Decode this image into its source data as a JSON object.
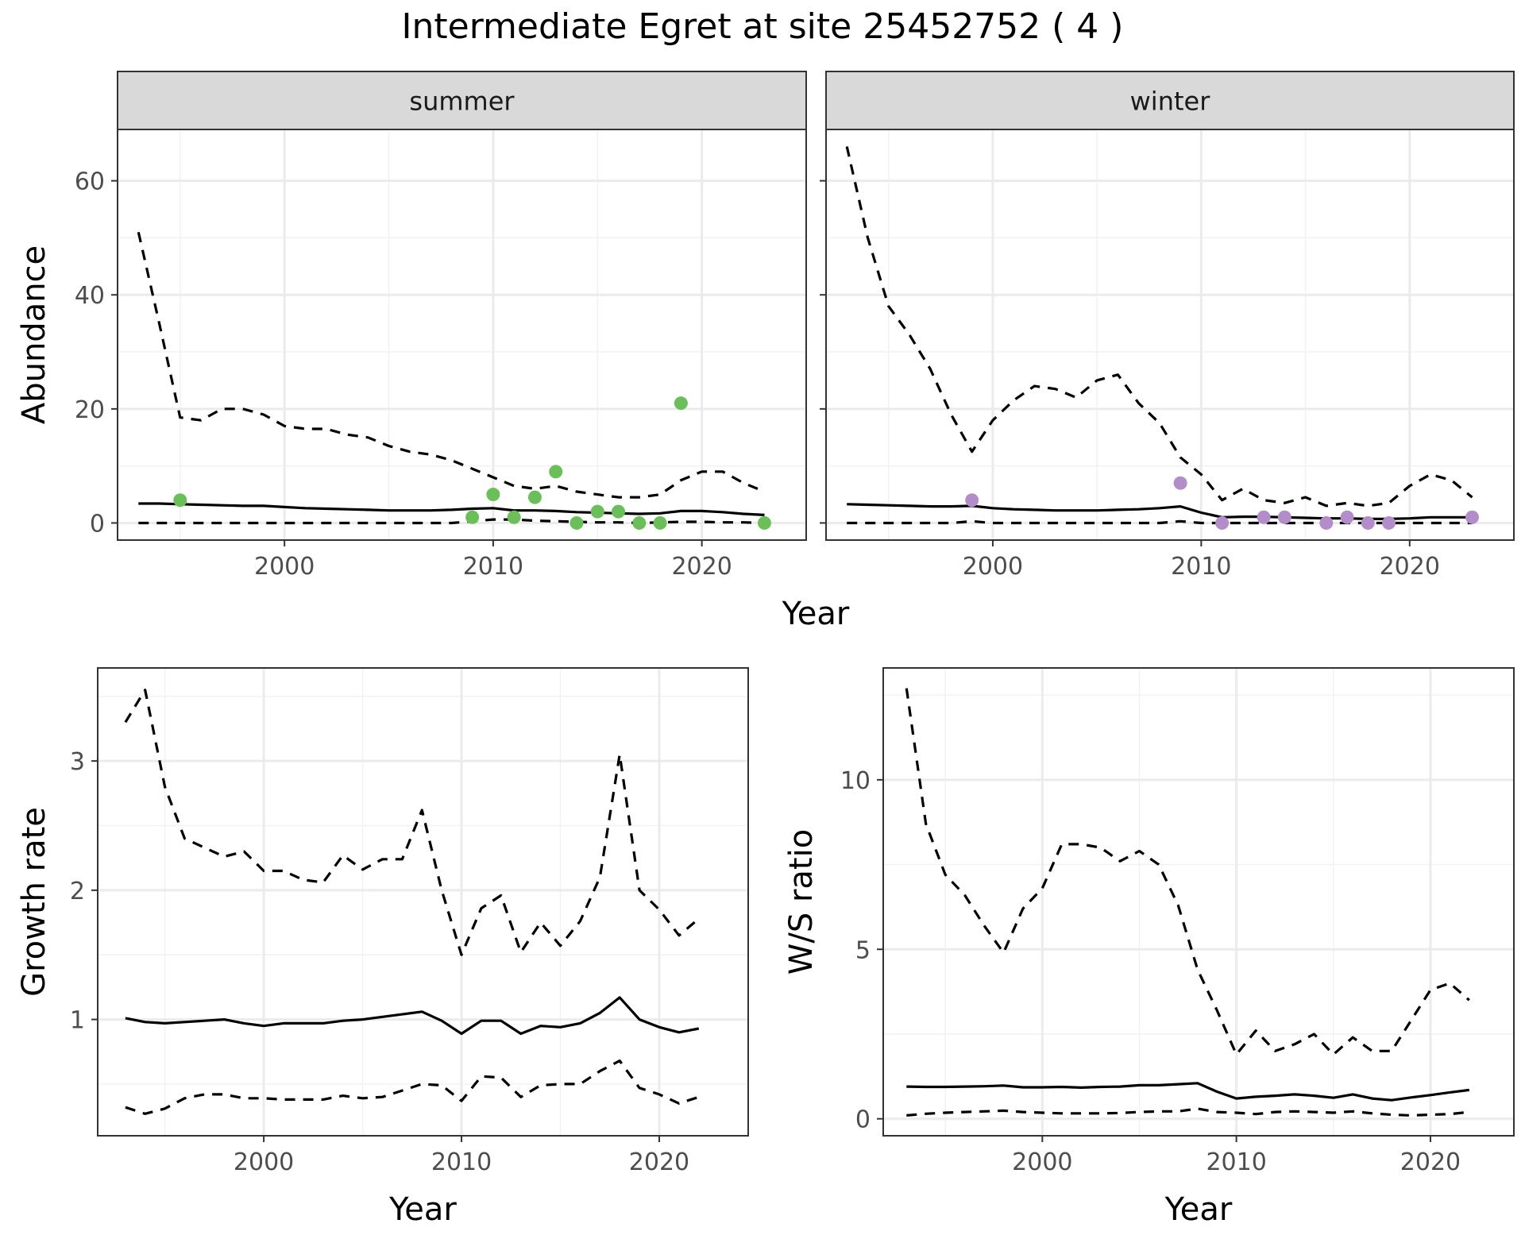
{
  "title": "Intermediate Egret at site 25452752 ( 4 )",
  "colors": {
    "summer": "#6BBF59",
    "winter": "#B28DC9",
    "line": "#000000",
    "strip": "#D9D9D9"
  },
  "chart_data": [
    {
      "type": "line",
      "facet": "summer",
      "xlabel": "Year",
      "ylabel": "Abundance",
      "xlim": [
        1992,
        2025
      ],
      "ylim": [
        -3,
        69
      ],
      "xticks": [
        2000,
        2010,
        2020
      ],
      "yticks": [
        0,
        20,
        40,
        60
      ],
      "grid": true,
      "lines": [
        {
          "style": "dashed",
          "x": [
            1993,
            1994,
            1995,
            1996,
            1997,
            1998,
            1999,
            2000,
            2001,
            2002,
            2003,
            2004,
            2005,
            2006,
            2007,
            2008,
            2009,
            2010,
            2011,
            2012,
            2013,
            2014,
            2015,
            2016,
            2017,
            2018,
            2019,
            2020,
            2021,
            2022,
            2023
          ],
          "y": [
            51,
            35,
            18.5,
            18,
            20,
            20,
            19,
            17,
            16.5,
            16.5,
            15.5,
            15,
            13.5,
            12.5,
            12,
            11,
            9.5,
            8,
            6.5,
            6,
            6.5,
            5.5,
            5,
            4.5,
            4.5,
            5,
            7.5,
            9,
            9,
            7,
            5.5
          ]
        },
        {
          "style": "solid",
          "x": [
            1993,
            1994,
            1995,
            1996,
            1997,
            1998,
            1999,
            2000,
            2001,
            2002,
            2003,
            2004,
            2005,
            2006,
            2007,
            2008,
            2009,
            2010,
            2011,
            2012,
            2013,
            2014,
            2015,
            2016,
            2017,
            2018,
            2019,
            2020,
            2021,
            2022,
            2023
          ],
          "y": [
            3.4,
            3.4,
            3.3,
            3.2,
            3.1,
            3.0,
            3.0,
            2.8,
            2.6,
            2.5,
            2.4,
            2.3,
            2.2,
            2.2,
            2.2,
            2.3,
            2.5,
            2.6,
            2.2,
            2.2,
            2.1,
            1.9,
            1.8,
            1.7,
            1.6,
            1.7,
            2.1,
            2.1,
            1.9,
            1.6,
            1.4
          ]
        },
        {
          "style": "dashed",
          "x": [
            1993,
            1995,
            2000,
            2005,
            2008,
            2009,
            2010,
            2011,
            2012,
            2013,
            2014,
            2015,
            2016,
            2017,
            2018,
            2019,
            2020,
            2021,
            2022,
            2023
          ],
          "y": [
            0,
            0,
            0,
            0,
            0,
            0.3,
            0.6,
            0.6,
            0.4,
            0.3,
            0.2,
            0.1,
            0.1,
            0,
            0.1,
            0.2,
            0.2,
            0.1,
            0.1,
            0
          ]
        }
      ],
      "points": {
        "x": [
          1995,
          2009,
          2010,
          2011,
          2012,
          2013,
          2014,
          2015,
          2016,
          2017,
          2018,
          2019,
          2023
        ],
        "y": [
          4,
          1,
          5,
          1,
          4.5,
          9,
          0,
          2,
          2,
          0,
          0,
          21,
          0
        ]
      }
    },
    {
      "type": "line",
      "facet": "winter",
      "xlabel": "Year",
      "ylabel": "",
      "xlim": [
        1992,
        2025
      ],
      "ylim": [
        -3,
        69
      ],
      "xticks": [
        2000,
        2010,
        2020
      ],
      "yticks": [
        0,
        20,
        40,
        60
      ],
      "grid": true,
      "lines": [
        {
          "style": "dashed",
          "x": [
            1993,
            1994,
            1995,
            1996,
            1997,
            1998,
            1999,
            2000,
            2001,
            2002,
            2003,
            2004,
            2005,
            2006,
            2007,
            2008,
            2009,
            2010,
            2011,
            2012,
            2013,
            2014,
            2015,
            2016,
            2017,
            2018,
            2019,
            2020,
            2021,
            2022,
            2023
          ],
          "y": [
            66,
            50,
            38,
            33,
            27,
            19,
            12.5,
            18,
            21.5,
            24,
            23.5,
            22,
            25,
            26,
            21,
            17.5,
            11.5,
            8.5,
            4,
            6,
            4,
            3.5,
            4.5,
            3,
            3.5,
            3,
            3.5,
            6.5,
            8.5,
            7.5,
            4.5
          ]
        },
        {
          "style": "solid",
          "x": [
            1993,
            1994,
            1995,
            1996,
            1997,
            1998,
            1999,
            2000,
            2001,
            2002,
            2003,
            2004,
            2005,
            2006,
            2007,
            2008,
            2009,
            2010,
            2011,
            2012,
            2013,
            2014,
            2015,
            2016,
            2017,
            2018,
            2019,
            2020,
            2021,
            2022,
            2023
          ],
          "y": [
            3.3,
            3.2,
            3.1,
            3.0,
            2.9,
            2.9,
            3.0,
            2.6,
            2.4,
            2.3,
            2.2,
            2.2,
            2.2,
            2.3,
            2.4,
            2.6,
            2.9,
            1.8,
            1.0,
            1.1,
            1.1,
            1.0,
            0.9,
            0.8,
            0.8,
            0.7,
            0.7,
            0.8,
            1.0,
            1.0,
            1.0
          ]
        },
        {
          "style": "dashed",
          "x": [
            1993,
            1998,
            1999,
            2000,
            2005,
            2008,
            2009,
            2010,
            2015,
            2020,
            2023
          ],
          "y": [
            0,
            0,
            0.3,
            0,
            0,
            0,
            0.3,
            0,
            0,
            0,
            0
          ]
        }
      ],
      "points": {
        "x": [
          1999,
          2009,
          2011,
          2013,
          2014,
          2016,
          2017,
          2018,
          2019,
          2023
        ],
        "y": [
          4,
          7,
          0,
          1,
          1,
          0,
          1,
          0,
          0,
          1
        ]
      }
    },
    {
      "type": "line",
      "xlabel": "Year",
      "ylabel": "Growth rate",
      "xlim": [
        1991.6,
        2024.5
      ],
      "ylim": [
        0.1,
        3.72
      ],
      "xticks": [
        2000,
        2010,
        2020
      ],
      "yticks": [
        1,
        2,
        3
      ],
      "grid": true,
      "lines": [
        {
          "style": "dashed",
          "x": [
            1993,
            1994,
            1995,
            1996,
            1997,
            1998,
            1999,
            2000,
            2001,
            2002,
            2003,
            2004,
            2005,
            2006,
            2007,
            2008,
            2009,
            2010,
            2011,
            2012,
            2013,
            2014,
            2015,
            2016,
            2017,
            2018,
            2019,
            2020,
            2021,
            2022
          ],
          "y": [
            3.3,
            3.55,
            2.8,
            2.4,
            2.33,
            2.26,
            2.3,
            2.15,
            2.15,
            2.08,
            2.06,
            2.27,
            2.16,
            2.24,
            2.24,
            2.62,
            2.0,
            1.5,
            1.86,
            1.96,
            1.52,
            1.75,
            1.57,
            1.76,
            2.1,
            3.05,
            2.0,
            1.85,
            1.65,
            1.78
          ]
        },
        {
          "style": "solid",
          "x": [
            1993,
            1994,
            1995,
            1996,
            1997,
            1998,
            1999,
            2000,
            2001,
            2002,
            2003,
            2004,
            2005,
            2006,
            2007,
            2008,
            2009,
            2010,
            2011,
            2012,
            2013,
            2014,
            2015,
            2016,
            2017,
            2018,
            2019,
            2020,
            2021,
            2022
          ],
          "y": [
            1.01,
            0.98,
            0.97,
            0.98,
            0.99,
            1.0,
            0.97,
            0.95,
            0.97,
            0.97,
            0.97,
            0.99,
            1.0,
            1.02,
            1.04,
            1.06,
            0.99,
            0.89,
            0.99,
            0.99,
            0.89,
            0.95,
            0.94,
            0.97,
            1.05,
            1.17,
            1.0,
            0.94,
            0.9,
            0.93
          ]
        },
        {
          "style": "dashed",
          "x": [
            1993,
            1994,
            1995,
            1996,
            1997,
            1998,
            1999,
            2000,
            2001,
            2002,
            2003,
            2004,
            2005,
            2006,
            2007,
            2008,
            2009,
            2010,
            2011,
            2012,
            2013,
            2014,
            2015,
            2016,
            2017,
            2018,
            2019,
            2020,
            2021,
            2022
          ],
          "y": [
            0.32,
            0.27,
            0.31,
            0.39,
            0.42,
            0.42,
            0.39,
            0.39,
            0.38,
            0.38,
            0.38,
            0.41,
            0.39,
            0.4,
            0.45,
            0.5,
            0.49,
            0.37,
            0.56,
            0.55,
            0.4,
            0.49,
            0.5,
            0.5,
            0.6,
            0.68,
            0.47,
            0.42,
            0.35,
            0.4
          ]
        }
      ]
    },
    {
      "type": "line",
      "xlabel": "Year",
      "ylabel": "W/S ratio",
      "xlim": [
        1991.8,
        2024.3
      ],
      "ylim": [
        -0.5,
        13.3
      ],
      "xticks": [
        2000,
        2010,
        2020
      ],
      "yticks": [
        0,
        5,
        10
      ],
      "grid": true,
      "lines": [
        {
          "style": "dashed",
          "x": [
            1993,
            1994,
            1995,
            1996,
            1997,
            1998,
            1999,
            2000,
            2001,
            2002,
            2003,
            2004,
            2005,
            2006,
            2007,
            2008,
            2009,
            2010,
            2011,
            2012,
            2013,
            2014,
            2015,
            2016,
            2017,
            2018,
            2019,
            2020,
            2021,
            2022
          ],
          "y": [
            12.7,
            8.7,
            7.2,
            6.6,
            5.7,
            4.9,
            6.2,
            6.8,
            8.1,
            8.1,
            8.0,
            7.6,
            7.9,
            7.5,
            6.3,
            4.4,
            3.2,
            1.9,
            2.6,
            2.0,
            2.2,
            2.5,
            1.9,
            2.4,
            2.0,
            2.0,
            2.9,
            3.8,
            4.0,
            3.5
          ]
        },
        {
          "style": "solid",
          "x": [
            1993,
            1994,
            1995,
            1996,
            1997,
            1998,
            1999,
            2000,
            2001,
            2002,
            2003,
            2004,
            2005,
            2006,
            2007,
            2008,
            2009,
            2010,
            2011,
            2012,
            2013,
            2014,
            2015,
            2016,
            2017,
            2018,
            2019,
            2020,
            2021,
            2022
          ],
          "y": [
            0.95,
            0.94,
            0.94,
            0.95,
            0.96,
            0.98,
            0.93,
            0.93,
            0.94,
            0.92,
            0.94,
            0.95,
            0.99,
            0.99,
            1.02,
            1.05,
            0.8,
            0.6,
            0.65,
            0.68,
            0.72,
            0.68,
            0.62,
            0.72,
            0.6,
            0.55,
            0.63,
            0.7,
            0.78,
            0.85
          ]
        },
        {
          "style": "dashed",
          "x": [
            1993,
            1994,
            1995,
            1996,
            1997,
            1998,
            1999,
            2000,
            2001,
            2002,
            2003,
            2004,
            2005,
            2006,
            2007,
            2008,
            2009,
            2010,
            2011,
            2012,
            2013,
            2014,
            2015,
            2016,
            2017,
            2018,
            2019,
            2020,
            2021,
            2022
          ],
          "y": [
            0.1,
            0.15,
            0.18,
            0.2,
            0.22,
            0.24,
            0.2,
            0.18,
            0.16,
            0.16,
            0.16,
            0.17,
            0.2,
            0.22,
            0.22,
            0.3,
            0.2,
            0.18,
            0.14,
            0.2,
            0.22,
            0.2,
            0.18,
            0.22,
            0.16,
            0.12,
            0.1,
            0.12,
            0.14,
            0.2
          ]
        }
      ]
    }
  ]
}
